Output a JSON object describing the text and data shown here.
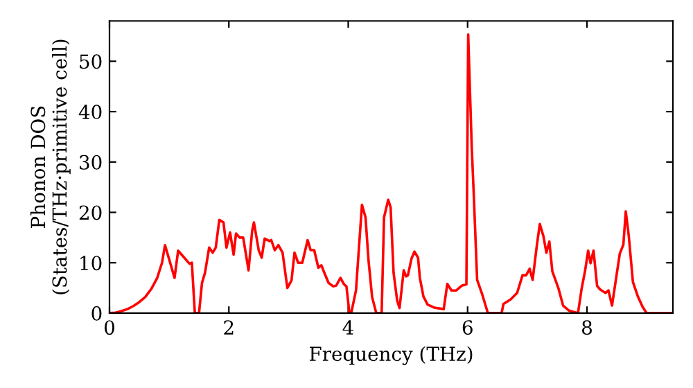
{
  "chart_data": {
    "type": "line",
    "xlabel": "Frequency (THz)",
    "ylabel": "Phonon DOS\n(States/THz·primitive cell)",
    "xlim": [
      0,
      9.44
    ],
    "ylim": [
      0,
      58
    ],
    "xticks": [
      0,
      2,
      4,
      6,
      8
    ],
    "yticks": [
      0,
      10,
      20,
      30,
      40,
      50
    ],
    "grid": false,
    "legend": false,
    "marker": "none",
    "line_style": "solid",
    "series": [
      {
        "color": "#ff0000",
        "x": [
          0,
          0.1,
          0.2,
          0.3,
          0.4,
          0.5,
          0.6,
          0.7,
          0.8,
          0.88,
          0.93,
          1.09,
          1.15,
          1.34,
          1.38,
          1.43,
          1.5,
          1.55,
          1.6,
          1.67,
          1.73,
          1.78,
          1.84,
          1.91,
          1.96,
          2.02,
          2.08,
          2.12,
          2.18,
          2.24,
          2.33,
          2.39,
          2.42,
          2.5,
          2.55,
          2.6,
          2.68,
          2.71,
          2.77,
          2.83,
          2.9,
          2.98,
          3.05,
          3.1,
          3.16,
          3.23,
          3.32,
          3.37,
          3.43,
          3.5,
          3.55,
          3.6,
          3.67,
          3.75,
          3.8,
          3.87,
          3.93,
          3.97,
          4.02,
          4.05,
          4.13,
          4.23,
          4.29,
          4.34,
          4.4,
          4.47,
          4.56,
          4.6,
          4.67,
          4.71,
          4.76,
          4.82,
          4.86,
          4.93,
          4.97,
          5.0,
          5.06,
          5.11,
          5.17,
          5.2,
          5.26,
          5.33,
          5.44,
          5.6,
          5.66,
          5.73,
          5.81,
          5.91,
          5.98,
          6.01,
          6.07,
          6.1,
          6.16,
          6.24,
          6.34,
          6.57,
          6.6,
          6.72,
          6.83,
          6.92,
          6.98,
          7.04,
          7.09,
          7.16,
          7.21,
          7.27,
          7.32,
          7.37,
          7.42,
          7.52,
          7.6,
          7.7,
          7.85,
          7.91,
          7.97,
          8.02,
          8.06,
          8.11,
          8.17,
          8.22,
          8.31,
          8.36,
          8.42,
          8.55,
          8.61,
          8.65,
          8.7,
          8.77,
          8.85,
          8.93,
          9.0,
          9.44
        ],
        "values": [
          0,
          0.1,
          0.4,
          0.8,
          1.4,
          2.2,
          3.2,
          4.8,
          7,
          10,
          13.5,
          7,
          12.4,
          9.8,
          10,
          0,
          0,
          6,
          8,
          13,
          12,
          13,
          18.5,
          18,
          13,
          16,
          11.6,
          15.8,
          15,
          15,
          8.5,
          16.3,
          18,
          12.5,
          11,
          14.8,
          14.3,
          14.5,
          12.5,
          13.5,
          12,
          5,
          6.5,
          12,
          10,
          10,
          14.5,
          12.5,
          12.5,
          9,
          9.5,
          8,
          6,
          5.3,
          5.5,
          7,
          5.7,
          5.3,
          0,
          0,
          4.5,
          21.5,
          19,
          10.5,
          3.2,
          0,
          0,
          19,
          22.5,
          21,
          8,
          2.5,
          1,
          8.5,
          7.3,
          7.5,
          10.8,
          12.2,
          11,
          7,
          3.3,
          1.7,
          1.1,
          0.8,
          5.8,
          4.5,
          4.5,
          5.5,
          5.7,
          55.3,
          32.8,
          24.5,
          6.6,
          3.9,
          0,
          0,
          1.8,
          2.7,
          4,
          7.5,
          7.5,
          8.8,
          6.6,
          13.4,
          17.7,
          15.3,
          12,
          14.2,
          8.3,
          5,
          1.5,
          0.5,
          0,
          4.8,
          8.5,
          12.4,
          9.9,
          12.4,
          5.4,
          4.7,
          4,
          4.5,
          1.5,
          11.8,
          13.6,
          20.2,
          15.4,
          6.2,
          3.4,
          1.3,
          0,
          0
        ]
      }
    ]
  }
}
